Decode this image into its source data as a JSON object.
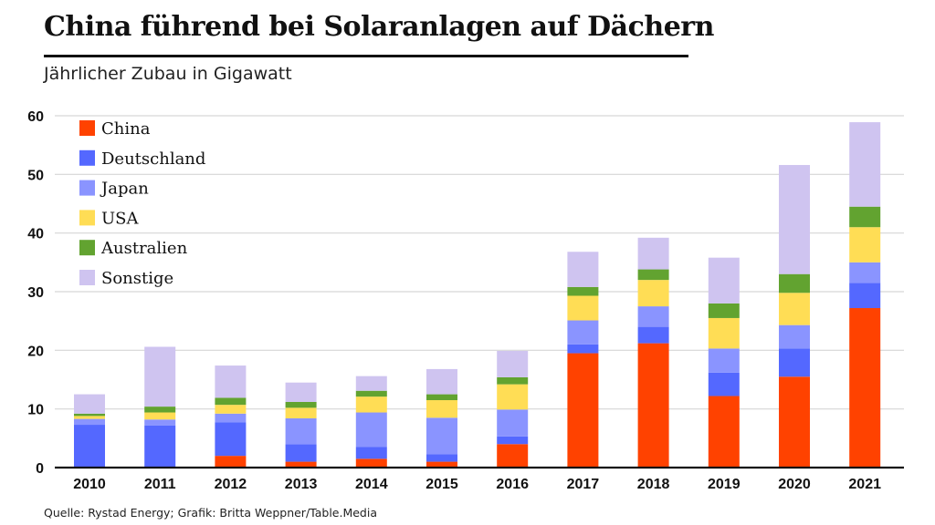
{
  "chart_data": {
    "type": "bar",
    "stacked": true,
    "title": "China führend bei Solaranlagen auf Dächern",
    "subtitle": "Jährlicher Zubau in Gigawatt",
    "xlabel": "",
    "ylabel": "",
    "ylim": [
      0,
      60
    ],
    "yticks": [
      "0",
      "10",
      "20",
      "30",
      "40",
      "50",
      "60"
    ],
    "ytick_values": [
      0,
      10,
      20,
      30,
      40,
      50,
      60
    ],
    "categories": [
      "2010",
      "2011",
      "2012",
      "2013",
      "2014",
      "2015",
      "2016",
      "2017",
      "2018",
      "2019",
      "2020",
      "2021"
    ],
    "series": [
      {
        "name": "China",
        "color": "#ff4200",
        "values": [
          0,
          0,
          2,
          1,
          1.5,
          1,
          4,
          19.5,
          21.2,
          12.2,
          15.5,
          27.2
        ]
      },
      {
        "name": "Deutschland",
        "color": "#5468ff",
        "values": [
          7.3,
          7.2,
          5.7,
          3,
          2,
          1.3,
          1.3,
          1.5,
          2.8,
          4,
          4.8,
          4.3
        ]
      },
      {
        "name": "Japan",
        "color": "#8a94ff",
        "values": [
          1,
          1,
          1.5,
          4.4,
          5.9,
          6.2,
          4.6,
          4.1,
          3.5,
          4.1,
          4,
          3.5
        ]
      },
      {
        "name": "USA",
        "color": "#ffdd55",
        "values": [
          0.5,
          1.2,
          1.5,
          1.8,
          2.7,
          3,
          4.3,
          4.2,
          4.5,
          5.2,
          5.5,
          6
        ]
      },
      {
        "name": "Australien",
        "color": "#62a330",
        "values": [
          0.4,
          1,
          1.2,
          1,
          1,
          1,
          1.2,
          1.5,
          1.8,
          2.5,
          3.2,
          3.5
        ]
      },
      {
        "name": "Sonstige",
        "color": "#cfc4f0",
        "values": [
          3.3,
          10.2,
          5.5,
          3.3,
          2.5,
          4.3,
          4.5,
          6,
          5.4,
          7.8,
          18.6,
          14.4
        ]
      }
    ],
    "legend_position": "top-left",
    "grid": true
  },
  "source": "Quelle: Rystad Energy; Grafik: Britta Weppner/Table.Media"
}
